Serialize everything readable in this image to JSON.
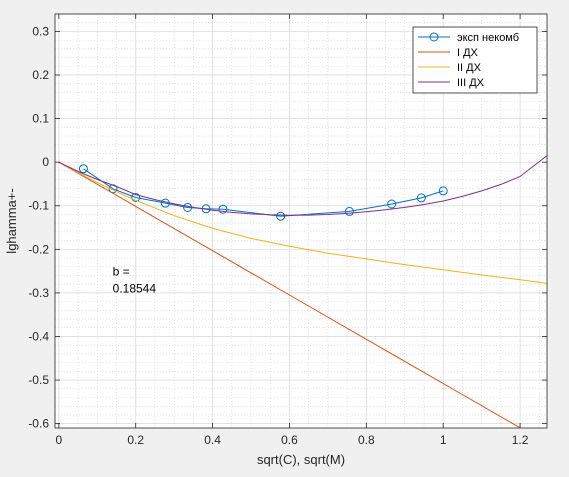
{
  "chart_data": {
    "type": "line",
    "xlabel": "sqrt(C), sqrt(M)",
    "ylabel": "lghamma+-",
    "xlim": [
      -0.01,
      1.27
    ],
    "ylim": [
      -0.61,
      0.34
    ],
    "xticks": [
      0,
      0.2,
      0.4,
      0.6,
      0.8,
      1,
      1.2
    ],
    "xtick_labels": [
      "0",
      "0.2",
      "0.4",
      "0.6",
      "0.8",
      "1",
      "1.2"
    ],
    "yticks": [
      -0.6,
      -0.5,
      -0.4,
      -0.3,
      -0.2,
      -0.1,
      0,
      0.1,
      0.2,
      0.3
    ],
    "ytick_labels": [
      "-0.6",
      "-0.5",
      "-0.4",
      "-0.3",
      "-0.2",
      "-0.1",
      "0",
      "0.1",
      "0.2",
      "0.3"
    ],
    "grid": true,
    "minor_grid": true,
    "legend_position": "top-right",
    "series": [
      {
        "name": "эксп некомб",
        "color": "#0072bd",
        "marker": "circle",
        "x": [
          0.064,
          0.141,
          0.2,
          0.277,
          0.335,
          0.383,
          0.427,
          0.577,
          0.756,
          0.866,
          0.943,
          1.0
        ],
        "y": [
          -0.015,
          -0.061,
          -0.081,
          -0.094,
          -0.104,
          -0.107,
          -0.108,
          -0.124,
          -0.113,
          -0.096,
          -0.082,
          -0.066
        ]
      },
      {
        "name": "I ДХ",
        "color": "#d95319",
        "x": [
          0,
          0.2,
          0.4,
          0.6,
          0.8,
          1.0,
          1.2,
          1.27
        ],
        "y": [
          0,
          -0.1016,
          -0.2032,
          -0.3048,
          -0.4064,
          -0.508,
          -0.6096,
          -0.6452
        ]
      },
      {
        "name": "II ДХ",
        "color": "#edb120",
        "x": [
          0,
          0.05,
          0.1,
          0.15,
          0.2,
          0.3,
          0.4,
          0.5,
          0.6,
          0.7,
          0.8,
          0.9,
          1.0,
          1.1,
          1.2,
          1.27
        ],
        "y": [
          0,
          -0.0241,
          -0.0466,
          -0.0677,
          -0.0876,
          -0.1229,
          -0.152,
          -0.175,
          -0.193,
          -0.209,
          -0.222,
          -0.235,
          -0.247,
          -0.259,
          -0.27,
          -0.278
        ]
      },
      {
        "name": "III ДХ",
        "color": "#7e2f8e",
        "x": [
          0,
          0.05,
          0.1,
          0.15,
          0.2,
          0.25,
          0.3,
          0.35,
          0.4,
          0.45,
          0.5,
          0.55,
          0.6,
          0.65,
          0.7,
          0.75,
          0.8,
          0.85,
          0.9,
          0.95,
          1.0,
          1.05,
          1.1,
          1.15,
          1.2,
          1.27
        ],
        "y": [
          0,
          -0.0213,
          -0.0398,
          -0.0558,
          -0.0744,
          -0.0858,
          -0.0958,
          -0.1039,
          -0.1103,
          -0.1152,
          -0.1187,
          -0.1208,
          -0.1217,
          -0.1214,
          -0.12,
          -0.1175,
          -0.114,
          -0.1094,
          -0.1038,
          -0.0972,
          -0.0891,
          -0.0785,
          -0.066,
          -0.051,
          -0.033,
          0.015
        ]
      }
    ],
    "annotation": {
      "lines": [
        "b =",
        "0.18544"
      ],
      "x": 0.14,
      "y": -0.26
    }
  }
}
